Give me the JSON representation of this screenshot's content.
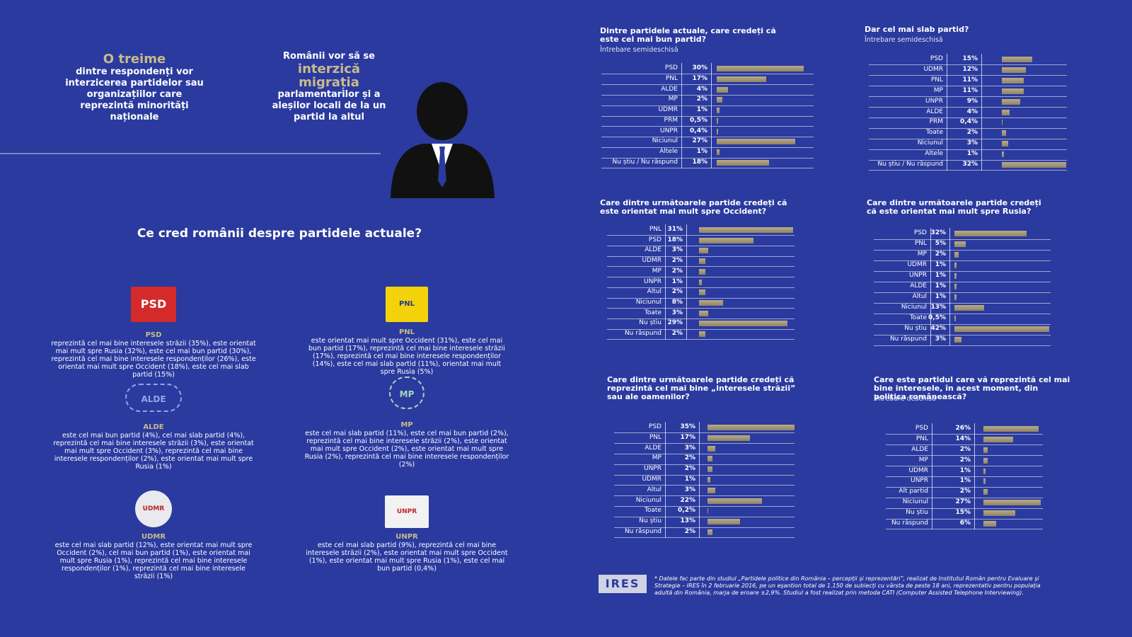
{
  "stat_1": {
    "highlight": "O treime",
    "text": "dintre respondenți vor interzicerea partidelor sau organizațiilor care reprezintă minorități naționale"
  },
  "stat_2": {
    "lead": "Românii vor să se",
    "highlight": "interzică migrația",
    "text": "parlamentarilor și a aleșilor locali de la un partid la altul"
  },
  "section_title": "Ce cred românii despre partidele actuale?",
  "parties": [
    {
      "logo": "PSD",
      "name": "PSD",
      "text": "reprezintă cel mai bine interesele străzii (35%), este orientat mai mult spre Rusia (32%), este cel mai bun partid (30%), reprezintă cel mai bine interesele respondenților (26%), este orientat mai mult spre Occident (18%), este cel mai slab partid (15%)"
    },
    {
      "logo": "PNL",
      "name": "PNL",
      "text": "este orientat mai mult spre Occident (31%), este cel mai bun partid (17%), reprezintă cel mai bine interesele străzii (17%), reprezintă cel mai bine interesele respondenților (14%), este cel mai slab partid (11%), orientat mai mult spre Rusia (5%)"
    },
    {
      "logo": "ALDE",
      "name": "ALDE",
      "text": "este cel mai bun partid (4%), cel mai slab partid (4%), reprezintă cel mai bine interesele străzii (3%), este orientat mai mult spre Occident (3%), reprezintă cel mai bine interesele respondenților (2%), este orientat mai mult spre Rusia (1%)"
    },
    {
      "logo": "MP",
      "name": "MP",
      "text": "este cel mai slab partid (11%), este cel mai bun partid (2%), reprezintă cel mai bine interesele străzii (2%), este orientat mai mult spre Occident (2%), este orientat mai mult spre Rusia (2%), reprezintă cel mai bine interesele respondenților (2%)"
    },
    {
      "logo": "UDMR",
      "name": "UDMR",
      "text": "este cel mai slab partid (12%), este orientat mai mult spre Occident (2%), cel mai bun partid (1%), este orientat mai mult spre Rusia (1%), reprezintă cel mai bine interesele respondenților (1%), reprezintă cel mai bine interesele străzii (1%)"
    },
    {
      "logo": "UNPR",
      "name": "UNPR",
      "text": "este cel mai slab partid (9%), reprezintă cel mai bine interesele străzii (2%), este orientat mai mult spre Occident (1%), este orientat mai mult spre Rusia (1%), este cel mai bun partid (0,4%)"
    }
  ],
  "chart_data": [
    {
      "type": "bar",
      "title": "Dintre partidele actuale, care credeți că este cel mai bun partid?",
      "subtitle": "Întrebare semideschisă",
      "color": "#b8ab88",
      "categories": [
        "PSD",
        "PNL",
        "ALDE",
        "MP",
        "UDMR",
        "PRM",
        "UNPR",
        "Niciunul",
        "Altele",
        "Nu știu / Nu răspund"
      ],
      "values": [
        30,
        17,
        4,
        2,
        1,
        0.5,
        0.4,
        27,
        1,
        18
      ],
      "value_labels": [
        "30%",
        "17%",
        "4%",
        "2%",
        "1%",
        "0,5%",
        "0,4%",
        "27%",
        "1%",
        "18%"
      ]
    },
    {
      "type": "bar",
      "title": "Dar cel mai slab partid?",
      "subtitle": "Întrebare semideschisă",
      "color": "#b8ab88",
      "categories": [
        "PSD",
        "UDMR",
        "PNL",
        "MP",
        "UNPR",
        "ALDE",
        "PRM",
        "Toate",
        "Niciunul",
        "Altele",
        "Nu știu / Nu răspund"
      ],
      "values": [
        15,
        12,
        11,
        11,
        9,
        4,
        0.4,
        2,
        3,
        1,
        32
      ],
      "value_labels": [
        "15%",
        "12%",
        "11%",
        "11%",
        "9%",
        "4%",
        "0,4%",
        "2%",
        "3%",
        "1%",
        "32%"
      ]
    },
    {
      "type": "bar",
      "title": "Care dintre următoarele partide credeți că este orientat mai mult spre Occident?",
      "color": "#b8ab88",
      "categories": [
        "PNL",
        "PSD",
        "ALDE",
        "UDMR",
        "MP",
        "UNPR",
        "Altul",
        "Niciunul",
        "Toate",
        "Nu știu",
        "Nu răspund"
      ],
      "values": [
        31,
        18,
        3,
        2,
        2,
        1,
        2,
        8,
        3,
        29,
        2
      ],
      "value_labels": [
        "31%",
        "18%",
        "3%",
        "2%",
        "2%",
        "1%",
        "2%",
        "8%",
        "3%",
        "29%",
        "2%"
      ]
    },
    {
      "type": "bar",
      "title": "Care dintre următoarele partide credeți că este orientat mai mult spre Rusia?",
      "color": "#b8ab88",
      "categories": [
        "PSD",
        "PNL",
        "MP",
        "UDMR",
        "UNPR",
        "ALDE",
        "Altul",
        "Niciunul",
        "Toate",
        "Nu știu",
        "Nu răspund"
      ],
      "values": [
        32,
        5,
        2,
        1,
        1,
        1,
        1,
        13,
        0.5,
        42,
        3
      ],
      "value_labels": [
        "32%",
        "5%",
        "2%",
        "1%",
        "1%",
        "1%",
        "1%",
        "13%",
        "0,5%",
        "42%",
        "3%"
      ]
    },
    {
      "type": "bar",
      "title": "Care dintre următoarele partide credeți că reprezintă cel mai bine „interesele străzii” sau ale oamenilor?",
      "color": "#b8ab88",
      "categories": [
        "PSD",
        "PNL",
        "ALDE",
        "MP",
        "UNPR",
        "UDMR",
        "Altul",
        "Niciunul",
        "Toate",
        "Nu știu",
        "Nu răspund"
      ],
      "values": [
        35,
        17,
        3,
        2,
        2,
        1,
        3,
        22,
        0.2,
        13,
        2
      ],
      "value_labels": [
        "35%",
        "17%",
        "3%",
        "2%",
        "2%",
        "1%",
        "3%",
        "22%",
        "0,2%",
        "13%",
        "2%"
      ]
    },
    {
      "type": "bar",
      "title": "Care este partidul care vă reprezintă cel mai bine interesele, în acest moment, din politica românească?",
      "subtitle": "Întrebare deschisă",
      "color": "#b8ab88",
      "categories": [
        "PSD",
        "PNL",
        "ALDE",
        "MP",
        "UDMR",
        "UNPR",
        "Alt partid",
        "Niciunul",
        "Nu știu",
        "Nu răspund"
      ],
      "values": [
        26,
        14,
        2,
        2,
        1,
        1,
        2,
        27,
        15,
        6
      ],
      "value_labels": [
        "26%",
        "14%",
        "2%",
        "2%",
        "1%",
        "1%",
        "2%",
        "27%",
        "15%",
        "6%"
      ]
    }
  ],
  "footnote": {
    "logo": "IRES",
    "text": "* Datele fac parte din studiul „Partidele politice din România – percepții și reprezentări”, realizat de Institutul Român pentru Evaluare și Strategie – IRES în 2 februarie 2016, pe un eșantion total de 1.150 de subiecți cu vârsta de peste 18 ani, reprezentativ pentru populația adultă din România, marja de eroare ±2,9%. Studiul a fost realizat prin metoda CATI (Computer Assisted Telephone Interviewing)."
  }
}
